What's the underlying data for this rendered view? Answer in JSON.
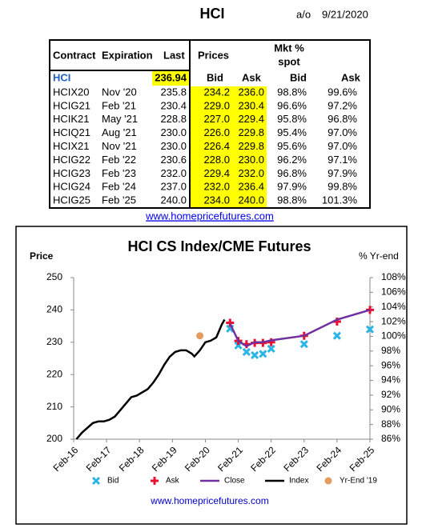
{
  "header": {
    "title": "HCI",
    "as_of_label": "a/o",
    "date": "9/21/2020"
  },
  "table": {
    "columns": [
      "Contract",
      "Expiration",
      "Last",
      "Prices",
      "Mkt %",
      "spot"
    ],
    "subheaders": [
      "Bid",
      "Ask",
      "Bid",
      "Ask"
    ],
    "rows": [
      {
        "contract": "HCI",
        "last": "236.94"
      },
      {
        "contract": "HCIX20",
        "expiration": "Nov '20",
        "last": "235.8",
        "bid": "234.2",
        "ask": "236.0",
        "spot_bid": "98.8%",
        "spot_ask": "99.6%"
      },
      {
        "contract": "HCIG21",
        "expiration": "Feb '21",
        "last": "230.4",
        "bid": "229.0",
        "ask": "230.4",
        "spot_bid": "96.6%",
        "spot_ask": "97.2%"
      },
      {
        "contract": "HCIK21",
        "expiration": "May '21",
        "last": "228.8",
        "bid": "227.0",
        "ask": "229.4",
        "spot_bid": "95.8%",
        "spot_ask": "96.8%"
      },
      {
        "contract": "HCIQ21",
        "expiration": "Aug '21",
        "last": "230.0",
        "bid": "226.0",
        "ask": "229.8",
        "spot_bid": "95.4%",
        "spot_ask": "97.0%"
      },
      {
        "contract": "HCIX21",
        "expiration": "Nov '21",
        "last": "230.0",
        "bid": "226.4",
        "ask": "229.8",
        "spot_bid": "95.6%",
        "spot_ask": "97.0%"
      },
      {
        "contract": "HCIG22",
        "expiration": "Feb '22",
        "last": "230.6",
        "bid": "228.0",
        "ask": "230.0",
        "spot_bid": "96.2%",
        "spot_ask": "97.1%"
      },
      {
        "contract": "HCIG23",
        "expiration": "Feb '23",
        "last": "232.0",
        "bid": "229.4",
        "ask": "232.0",
        "spot_bid": "96.8%",
        "spot_ask": "97.9%"
      },
      {
        "contract": "HCIG24",
        "expiration": "Feb '24",
        "last": "237.0",
        "bid": "232.0",
        "ask": "236.4",
        "spot_bid": "97.9%",
        "spot_ask": "99.8%"
      },
      {
        "contract": "HCIG25",
        "expiration": "Feb '25",
        "last": "240.0",
        "bid": "234.0",
        "ask": "240.0",
        "spot_bid": "98.8%",
        "spot_ask": "101.3%"
      }
    ]
  },
  "link": "www.homepricefutures.com",
  "chart_data": {
    "type": "line",
    "title": "HCI CS Index/CME Futures",
    "y_label": "Price",
    "y2_label": "% Yr-end",
    "xlim": [
      "2016-02",
      "2025-02"
    ],
    "xticks": [
      {
        "value": "2016-02",
        "label": "Feb-16"
      },
      {
        "value": "2017-02",
        "label": "Feb-17"
      },
      {
        "value": "2018-02",
        "label": "Feb-18"
      },
      {
        "value": "2019-02",
        "label": "Feb-19"
      },
      {
        "value": "2020-02",
        "label": "Feb-20"
      },
      {
        "value": "2021-02",
        "label": "Feb-21"
      },
      {
        "value": "2022-02",
        "label": "Feb-22"
      },
      {
        "value": "2023-02",
        "label": "Feb-23"
      },
      {
        "value": "2024-02",
        "label": "Feb-24"
      },
      {
        "value": "2025-02",
        "label": "Feb-25"
      }
    ],
    "ylim": [
      200,
      250
    ],
    "yticks": [
      200,
      210,
      220,
      230,
      240,
      250
    ],
    "y2lim": [
      86,
      108
    ],
    "y2ticks": [
      {
        "value": 86,
        "label": "86%"
      },
      {
        "value": 88,
        "label": "88%"
      },
      {
        "value": 90,
        "label": "90%"
      },
      {
        "value": 92,
        "label": "92%"
      },
      {
        "value": 94,
        "label": "94%"
      },
      {
        "value": 96,
        "label": "96%"
      },
      {
        "value": 98,
        "label": "98%"
      },
      {
        "value": 100,
        "label": "100%"
      },
      {
        "value": 102,
        "label": "102%"
      },
      {
        "value": 104,
        "label": "104%"
      },
      {
        "value": 106,
        "label": "106%"
      },
      {
        "value": 108,
        "label": "108%"
      }
    ],
    "grid": false,
    "legend": "bottom",
    "series": [
      {
        "name": "Bid",
        "color": "#2bb5e6",
        "marker": "x",
        "x": [
          "2020-11",
          "2021-02",
          "2021-05",
          "2021-08",
          "2021-11",
          "2022-02",
          "2023-02",
          "2024-02",
          "2025-02"
        ],
        "values": [
          234.2,
          229.0,
          227.0,
          226.0,
          226.4,
          228.0,
          229.4,
          232.0,
          234.0
        ]
      },
      {
        "name": "Ask",
        "color": "#e8102e",
        "marker": "+",
        "x": [
          "2020-11",
          "2021-02",
          "2021-05",
          "2021-08",
          "2021-11",
          "2022-02",
          "2023-02",
          "2024-02",
          "2025-02"
        ],
        "values": [
          236.0,
          230.4,
          229.4,
          229.8,
          229.8,
          230.0,
          232.0,
          236.4,
          240.0
        ]
      },
      {
        "name": "Close",
        "color": "#7030a0",
        "marker": "line",
        "x": [
          "2020-11",
          "2021-02",
          "2021-05",
          "2021-08",
          "2021-11",
          "2022-02",
          "2023-02",
          "2024-02",
          "2025-02"
        ],
        "values": [
          235.8,
          230.4,
          228.8,
          230.0,
          230.0,
          230.6,
          232.0,
          237.0,
          240.0
        ]
      },
      {
        "name": "Index",
        "color": "#000000",
        "marker": "line",
        "x": [
          "2016-03",
          "2016-05",
          "2016-07",
          "2016-09",
          "2016-11",
          "2017-01",
          "2017-03",
          "2017-05",
          "2017-07",
          "2017-09",
          "2017-11",
          "2018-01",
          "2018-03",
          "2018-05",
          "2018-07",
          "2018-09",
          "2018-11",
          "2019-01",
          "2019-03",
          "2019-05",
          "2019-07",
          "2019-09",
          "2019-10",
          "2019-12",
          "2020-02",
          "2020-04",
          "2020-06",
          "2020-08",
          "2020-09"
        ],
        "values": [
          200,
          202,
          203.5,
          205,
          205.5,
          205.5,
          206,
          207,
          209,
          211,
          213,
          213.5,
          214.5,
          215.5,
          217.5,
          220,
          223,
          225.5,
          227,
          227.5,
          227.5,
          226.5,
          225.6,
          227.5,
          230,
          230.5,
          231.5,
          235.5,
          237
        ]
      },
      {
        "name": "Yr-End '19",
        "color": "#e59a5e",
        "marker": "circle",
        "x": [
          "2019-12"
        ],
        "values": [
          232
        ]
      }
    ]
  }
}
